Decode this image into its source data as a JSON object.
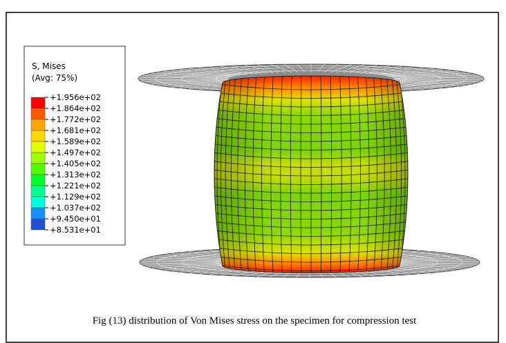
{
  "legend": {
    "title": "S, Mises",
    "subtitle": "(Avg: 75%)",
    "labels": [
      "+1.956e+02",
      "+1.864e+02",
      "+1.772e+02",
      "+1.681e+02",
      "+1.589e+02",
      "+1.497e+02",
      "+1.405e+02",
      "+1.313e+02",
      "+1.221e+02",
      "+1.129e+02",
      "+1.037e+02",
      "+9.450e+01",
      "+8.531e+01"
    ],
    "colors": [
      "#ff0000",
      "#ff5a00",
      "#ffa500",
      "#ffd800",
      "#e4ff00",
      "#9cff00",
      "#4cff00",
      "#00ff28",
      "#00ff8c",
      "#00ffe0",
      "#1890ff",
      "#2050d8"
    ]
  },
  "caption": "Fig (13) distribution of Von Mises stress on the specimen for compression test"
}
